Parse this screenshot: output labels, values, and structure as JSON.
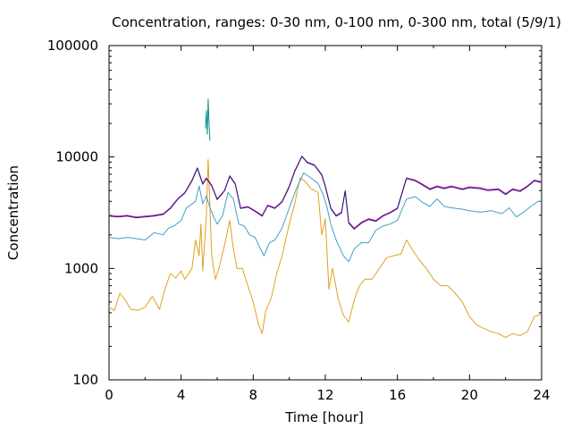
{
  "chart_data": {
    "type": "line",
    "title": "Concentration, ranges: 0-30 nm, 0-100 nm, 0-300 nm, total (5/9/1)",
    "xlabel": "Time [hour]",
    "ylabel": "Concentration",
    "xlim": [
      0,
      24
    ],
    "ylim": [
      100,
      100000
    ],
    "yscale": "log",
    "grid": false,
    "legend": "none",
    "x_ticks": [
      {
        "value": 0,
        "label": "0"
      },
      {
        "value": 4,
        "label": "4"
      },
      {
        "value": 8,
        "label": "8"
      },
      {
        "value": 12,
        "label": "12"
      },
      {
        "value": 16,
        "label": "16"
      },
      {
        "value": 20,
        "label": "20"
      },
      {
        "value": 24,
        "label": "24"
      }
    ],
    "y_ticks": [
      {
        "value": 100,
        "label": "100"
      },
      {
        "value": 1000,
        "label": "1000"
      },
      {
        "value": 10000,
        "label": "10000"
      },
      {
        "value": 100000,
        "label": "100000"
      }
    ],
    "series": [
      {
        "color": "#e0a020",
        "points": [
          [
            0,
            450
          ],
          [
            0.3,
            420
          ],
          [
            0.6,
            600
          ],
          [
            0.9,
            520
          ],
          [
            1.2,
            430
          ],
          [
            1.6,
            420
          ],
          [
            2.0,
            450
          ],
          [
            2.4,
            560
          ],
          [
            2.8,
            430
          ],
          [
            3.1,
            650
          ],
          [
            3.4,
            900
          ],
          [
            3.7,
            820
          ],
          [
            4.0,
            950
          ],
          [
            4.2,
            800
          ],
          [
            4.6,
            1000
          ],
          [
            4.8,
            1800
          ],
          [
            5.0,
            1300
          ],
          [
            5.1,
            2500
          ],
          [
            5.2,
            950
          ],
          [
            5.4,
            3000
          ],
          [
            5.5,
            9500
          ],
          [
            5.7,
            1300
          ],
          [
            5.9,
            800
          ],
          [
            6.1,
            1000
          ],
          [
            6.4,
            1600
          ],
          [
            6.7,
            2700
          ],
          [
            6.9,
            1500
          ],
          [
            7.1,
            1000
          ],
          [
            7.4,
            1000
          ],
          [
            7.7,
            700
          ],
          [
            8.0,
            500
          ],
          [
            8.3,
            310
          ],
          [
            8.5,
            260
          ],
          [
            8.7,
            420
          ],
          [
            9.0,
            540
          ],
          [
            9.3,
            900
          ],
          [
            9.6,
            1300
          ],
          [
            10.0,
            2500
          ],
          [
            10.3,
            3800
          ],
          [
            10.6,
            6500
          ],
          [
            10.9,
            6000
          ],
          [
            11.2,
            5200
          ],
          [
            11.6,
            4800
          ],
          [
            11.8,
            2000
          ],
          [
            12.0,
            2800
          ],
          [
            12.2,
            650
          ],
          [
            12.4,
            1000
          ],
          [
            12.7,
            550
          ],
          [
            13.0,
            380
          ],
          [
            13.3,
            330
          ],
          [
            13.6,
            520
          ],
          [
            13.9,
            700
          ],
          [
            14.2,
            800
          ],
          [
            14.6,
            800
          ],
          [
            15.0,
            1000
          ],
          [
            15.4,
            1250
          ],
          [
            15.8,
            1300
          ],
          [
            16.2,
            1350
          ],
          [
            16.5,
            1800
          ],
          [
            16.8,
            1500
          ],
          [
            17.2,
            1200
          ],
          [
            17.6,
            1000
          ],
          [
            18.0,
            800
          ],
          [
            18.4,
            700
          ],
          [
            18.8,
            700
          ],
          [
            19.2,
            600
          ],
          [
            19.6,
            500
          ],
          [
            20.0,
            370
          ],
          [
            20.4,
            310
          ],
          [
            20.8,
            290
          ],
          [
            21.2,
            270
          ],
          [
            21.6,
            260
          ],
          [
            22.0,
            240
          ],
          [
            22.4,
            260
          ],
          [
            22.8,
            250
          ],
          [
            23.2,
            270
          ],
          [
            23.6,
            370
          ],
          [
            24.0,
            390
          ]
        ]
      },
      {
        "color": "#40a0c8",
        "points": [
          [
            0,
            1900
          ],
          [
            0.5,
            1850
          ],
          [
            1.0,
            1900
          ],
          [
            1.5,
            1850
          ],
          [
            2.0,
            1800
          ],
          [
            2.5,
            2100
          ],
          [
            3.0,
            2000
          ],
          [
            3.3,
            2300
          ],
          [
            3.6,
            2400
          ],
          [
            4.0,
            2700
          ],
          [
            4.3,
            3500
          ],
          [
            4.6,
            3800
          ],
          [
            4.8,
            4000
          ],
          [
            5.0,
            5500
          ],
          [
            5.2,
            3800
          ],
          [
            5.4,
            4500
          ],
          [
            5.6,
            3500
          ],
          [
            5.8,
            2900
          ],
          [
            6.0,
            2500
          ],
          [
            6.3,
            3000
          ],
          [
            6.6,
            4800
          ],
          [
            6.9,
            4200
          ],
          [
            7.2,
            2500
          ],
          [
            7.5,
            2400
          ],
          [
            7.8,
            2000
          ],
          [
            8.1,
            1900
          ],
          [
            8.4,
            1500
          ],
          [
            8.6,
            1300
          ],
          [
            8.9,
            1700
          ],
          [
            9.2,
            1800
          ],
          [
            9.6,
            2300
          ],
          [
            10.0,
            3500
          ],
          [
            10.4,
            5200
          ],
          [
            10.8,
            7200
          ],
          [
            11.2,
            6500
          ],
          [
            11.6,
            5800
          ],
          [
            11.9,
            4500
          ],
          [
            12.1,
            3500
          ],
          [
            12.3,
            2500
          ],
          [
            12.6,
            1800
          ],
          [
            13.0,
            1300
          ],
          [
            13.3,
            1150
          ],
          [
            13.6,
            1500
          ],
          [
            14.0,
            1700
          ],
          [
            14.4,
            1700
          ],
          [
            14.8,
            2200
          ],
          [
            15.2,
            2400
          ],
          [
            15.6,
            2500
          ],
          [
            16.0,
            2700
          ],
          [
            16.5,
            4200
          ],
          [
            17.0,
            4400
          ],
          [
            17.4,
            3900
          ],
          [
            17.8,
            3600
          ],
          [
            18.2,
            4200
          ],
          [
            18.6,
            3600
          ],
          [
            19.0,
            3500
          ],
          [
            19.6,
            3400
          ],
          [
            20.0,
            3300
          ],
          [
            20.6,
            3200
          ],
          [
            21.2,
            3300
          ],
          [
            21.8,
            3100
          ],
          [
            22.2,
            3500
          ],
          [
            22.6,
            2900
          ],
          [
            23.0,
            3200
          ],
          [
            23.4,
            3600
          ],
          [
            23.8,
            4000
          ],
          [
            24.0,
            4000
          ]
        ]
      },
      {
        "color": "#e020c0",
        "points": [
          [
            0,
            3000
          ],
          [
            0.5,
            2950
          ],
          [
            1.0,
            3000
          ],
          [
            1.5,
            2900
          ],
          [
            2.0,
            2950
          ],
          [
            2.5,
            3000
          ],
          [
            3.0,
            3100
          ],
          [
            3.4,
            3500
          ],
          [
            3.8,
            4200
          ],
          [
            4.2,
            4800
          ],
          [
            4.6,
            6200
          ],
          [
            4.9,
            8000
          ],
          [
            5.2,
            5800
          ],
          [
            5.4,
            6500
          ],
          [
            5.7,
            5600
          ],
          [
            6.0,
            4200
          ],
          [
            6.4,
            5000
          ],
          [
            6.7,
            6800
          ],
          [
            7.0,
            5800
          ],
          [
            7.3,
            3500
          ],
          [
            7.7,
            3600
          ],
          [
            8.1,
            3300
          ],
          [
            8.5,
            3000
          ],
          [
            8.8,
            3700
          ],
          [
            9.2,
            3500
          ],
          [
            9.6,
            4000
          ],
          [
            10.0,
            5500
          ],
          [
            10.3,
            7500
          ],
          [
            10.7,
            10200
          ],
          [
            11.0,
            9000
          ],
          [
            11.4,
            8500
          ],
          [
            11.8,
            7000
          ],
          [
            12.0,
            5500
          ],
          [
            12.3,
            3500
          ],
          [
            12.6,
            3000
          ],
          [
            12.9,
            3200
          ],
          [
            13.1,
            5000
          ],
          [
            13.3,
            2600
          ],
          [
            13.6,
            2300
          ],
          [
            14.0,
            2600
          ],
          [
            14.4,
            2800
          ],
          [
            14.8,
            2700
          ],
          [
            15.2,
            3000
          ],
          [
            15.6,
            3200
          ],
          [
            16.0,
            3500
          ],
          [
            16.5,
            6500
          ],
          [
            17.0,
            6200
          ],
          [
            17.4,
            5700
          ],
          [
            17.8,
            5200
          ],
          [
            18.2,
            5500
          ],
          [
            18.6,
            5300
          ],
          [
            19.0,
            5500
          ],
          [
            19.6,
            5200
          ],
          [
            20.0,
            5400
          ],
          [
            20.6,
            5300
          ],
          [
            21.0,
            5100
          ],
          [
            21.6,
            5200
          ],
          [
            22.0,
            4700
          ],
          [
            22.4,
            5200
          ],
          [
            22.8,
            5000
          ],
          [
            23.2,
            5500
          ],
          [
            23.6,
            6200
          ],
          [
            24.0,
            6000
          ]
        ]
      },
      {
        "color": "#1a1a70",
        "points": [
          [
            0,
            2950
          ],
          [
            0.5,
            2900
          ],
          [
            1.0,
            2950
          ],
          [
            1.5,
            2850
          ],
          [
            2.0,
            2900
          ],
          [
            2.5,
            2950
          ],
          [
            3.0,
            3050
          ],
          [
            3.4,
            3450
          ],
          [
            3.8,
            4150
          ],
          [
            4.2,
            4750
          ],
          [
            4.6,
            6100
          ],
          [
            4.9,
            7900
          ],
          [
            5.2,
            5700
          ],
          [
            5.4,
            6400
          ],
          [
            5.7,
            5500
          ],
          [
            6.0,
            4150
          ],
          [
            6.4,
            4950
          ],
          [
            6.7,
            6700
          ],
          [
            7.0,
            5700
          ],
          [
            7.3,
            3450
          ],
          [
            7.7,
            3550
          ],
          [
            8.1,
            3250
          ],
          [
            8.5,
            2950
          ],
          [
            8.8,
            3650
          ],
          [
            9.2,
            3450
          ],
          [
            9.6,
            3950
          ],
          [
            10.0,
            5400
          ],
          [
            10.3,
            7400
          ],
          [
            10.7,
            10100
          ],
          [
            11.0,
            8900
          ],
          [
            11.4,
            8400
          ],
          [
            11.8,
            6900
          ],
          [
            12.0,
            5400
          ],
          [
            12.3,
            3450
          ],
          [
            12.6,
            2950
          ],
          [
            12.9,
            3150
          ],
          [
            13.1,
            4950
          ],
          [
            13.3,
            2550
          ],
          [
            13.6,
            2250
          ],
          [
            14.0,
            2550
          ],
          [
            14.4,
            2750
          ],
          [
            14.8,
            2650
          ],
          [
            15.2,
            2950
          ],
          [
            15.6,
            3150
          ],
          [
            16.0,
            3450
          ],
          [
            16.5,
            6400
          ],
          [
            17.0,
            6100
          ],
          [
            17.4,
            5600
          ],
          [
            17.8,
            5100
          ],
          [
            18.2,
            5400
          ],
          [
            18.6,
            5200
          ],
          [
            19.0,
            5400
          ],
          [
            19.6,
            5100
          ],
          [
            20.0,
            5300
          ],
          [
            20.6,
            5200
          ],
          [
            21.0,
            5000
          ],
          [
            21.6,
            5100
          ],
          [
            22.0,
            4600
          ],
          [
            22.4,
            5100
          ],
          [
            22.8,
            4900
          ],
          [
            23.2,
            5400
          ],
          [
            23.6,
            6100
          ],
          [
            24.0,
            5900
          ]
        ]
      },
      {
        "color": "#109090",
        "points": [
          [
            5.35,
            18000
          ],
          [
            5.4,
            26000
          ],
          [
            5.45,
            16000
          ],
          [
            5.5,
            33000
          ],
          [
            5.55,
            20000
          ],
          [
            5.6,
            14000
          ]
        ]
      }
    ]
  }
}
